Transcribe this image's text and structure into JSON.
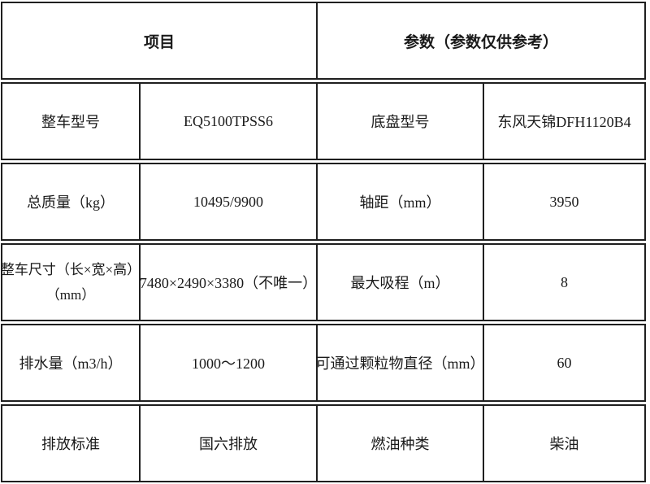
{
  "table": {
    "header": {
      "col_item": "项目",
      "col_params": "参数（参数仅供参考）"
    },
    "rows": [
      {
        "label1": "整车型号",
        "value1": "EQ5100TPSS6",
        "label2": "底盘型号",
        "value2": "东风天锦DFH1120B4"
      },
      {
        "label1": "总质量（kg）",
        "value1": "10495/9900",
        "label2": "轴距（mm）",
        "value2": "3950"
      },
      {
        "label1": "整车尺寸（长×宽×高）\n（mm）",
        "value1": "7480×2490×3380（不唯一）",
        "label2": "最大吸程（m）",
        "value2": "8"
      },
      {
        "label1": "排水量（m3/h）",
        "value1": "1000～1200",
        "label2": "可通过颗粒物直径（mm）",
        "value2": "60"
      },
      {
        "label1": "排放标准",
        "value1": "国六排放",
        "label2": "燃油种类",
        "value2": "柴油"
      }
    ]
  },
  "colors": {
    "border": "#1f1f1f",
    "text": "#1a1a1a",
    "background": "#ffffff"
  }
}
